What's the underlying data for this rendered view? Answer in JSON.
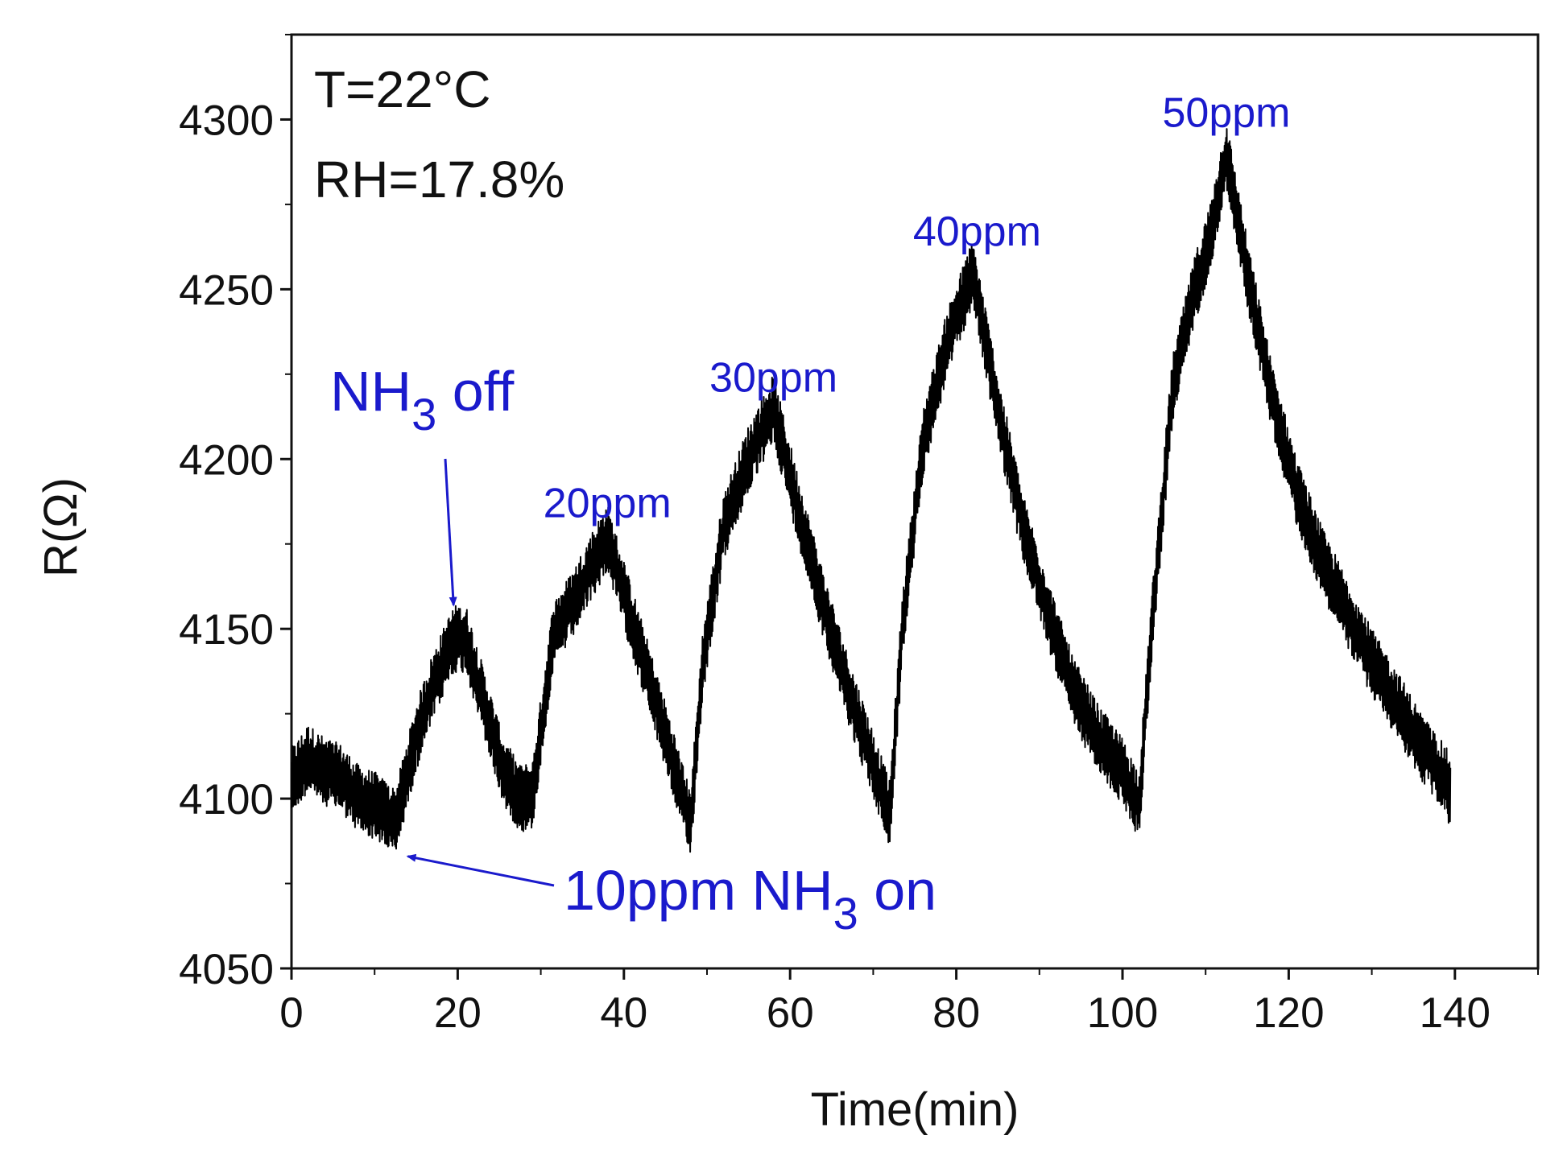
{
  "chart_data": {
    "type": "line",
    "title": "",
    "xlabel": "Time(min)",
    "ylabel": "R(Ω)",
    "xlim": [
      0,
      150
    ],
    "ylim": [
      4050,
      4325
    ],
    "xticks": [
      0,
      20,
      40,
      60,
      80,
      100,
      120,
      140
    ],
    "yticks": [
      4050,
      4100,
      4150,
      4200,
      4250,
      4300
    ],
    "series": [
      {
        "name": "R",
        "color": "#000000",
        "noise_amplitude_ohm": 10,
        "points": [
          [
            0,
            4105
          ],
          [
            2,
            4112
          ],
          [
            4,
            4108
          ],
          [
            6,
            4106
          ],
          [
            8,
            4100
          ],
          [
            10,
            4098
          ],
          [
            12.5,
            4093
          ],
          [
            15,
            4118
          ],
          [
            17,
            4133
          ],
          [
            19.5,
            4147
          ],
          [
            21,
            4147
          ],
          [
            23.5,
            4125
          ],
          [
            25.5,
            4108
          ],
          [
            27.5,
            4100
          ],
          [
            29,
            4101
          ],
          [
            31.5,
            4148
          ],
          [
            34,
            4158
          ],
          [
            36,
            4168
          ],
          [
            38,
            4177
          ],
          [
            41,
            4152
          ],
          [
            44,
            4127
          ],
          [
            46,
            4110
          ],
          [
            48,
            4092
          ],
          [
            49.5,
            4140
          ],
          [
            52,
            4180
          ],
          [
            55,
            4200
          ],
          [
            58,
            4215
          ],
          [
            61,
            4185
          ],
          [
            64,
            4157
          ],
          [
            67,
            4132
          ],
          [
            70,
            4110
          ],
          [
            72,
            4095
          ],
          [
            73.5,
            4150
          ],
          [
            76,
            4205
          ],
          [
            79,
            4235
          ],
          [
            82,
            4255
          ],
          [
            85,
            4215
          ],
          [
            88,
            4180
          ],
          [
            91,
            4155
          ],
          [
            94,
            4132
          ],
          [
            97,
            4118
          ],
          [
            100,
            4108
          ],
          [
            102,
            4098
          ],
          [
            103.5,
            4150
          ],
          [
            106,
            4220
          ],
          [
            108.5,
            4248
          ],
          [
            110.5,
            4265
          ],
          [
            112.5,
            4290
          ],
          [
            115,
            4255
          ],
          [
            118,
            4218
          ],
          [
            121,
            4190
          ],
          [
            124,
            4170
          ],
          [
            127,
            4155
          ],
          [
            130,
            4140
          ],
          [
            133,
            4128
          ],
          [
            136,
            4115
          ],
          [
            139,
            4105
          ],
          [
            139.5,
            4100
          ]
        ]
      }
    ],
    "conditions": [
      "T=22°C",
      "RH=17.8%"
    ],
    "annotations": {
      "off_label": "NH",
      "off_sub": "3",
      "off_suffix": " off",
      "off_target": [
        19.5,
        4157
      ],
      "on_prefix": "10ppm NH",
      "on_sub": "3",
      "on_suffix": " on",
      "on_target": [
        14,
        4083
      ],
      "peak_labels": [
        {
          "text": "20ppm",
          "x": 38,
          "y": 4181
        },
        {
          "text": "30ppm",
          "x": 58,
          "y": 4218
        },
        {
          "text": "40ppm",
          "x": 82.5,
          "y": 4261
        },
        {
          "text": "50ppm",
          "x": 112.5,
          "y": 4296
        }
      ]
    },
    "line_color": "#000000",
    "annotation_color": "#1a1acc"
  }
}
